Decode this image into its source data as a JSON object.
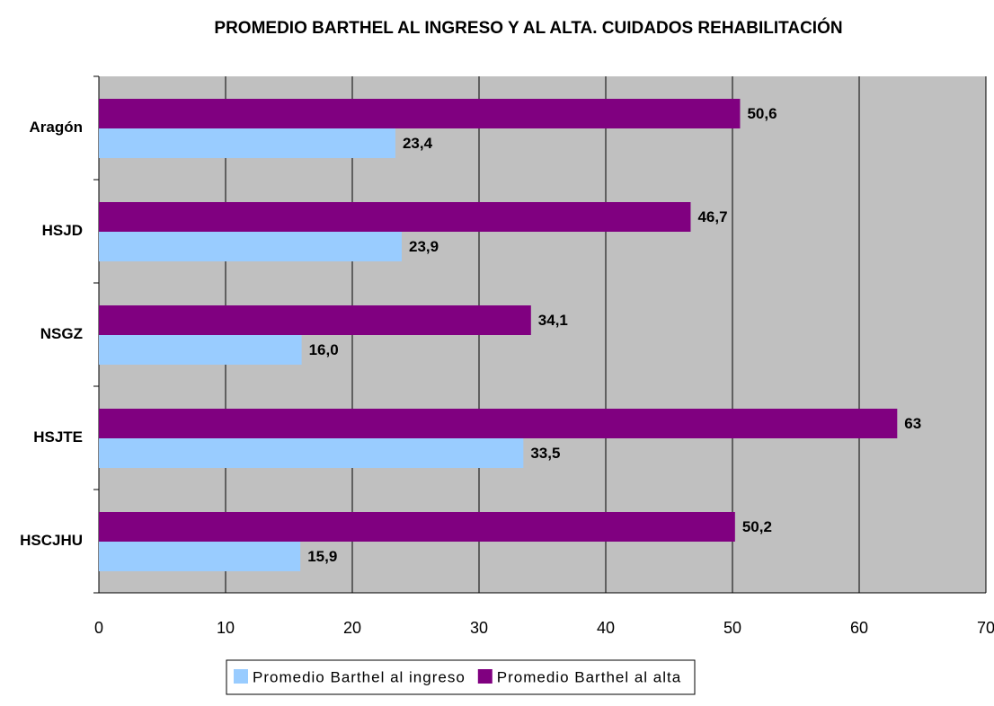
{
  "chart_data": {
    "type": "hbar",
    "title": "PROMEDIO BARTHEL AL INGRESO Y AL ALTA. CUIDADOS REHABILITACIÓN",
    "categories": [
      "Aragón",
      "HSJD",
      "NSGZ",
      "HSJTE",
      "HSCJHU"
    ],
    "series": [
      {
        "name": "Promedio Barthel al ingreso",
        "color": "#99ccff",
        "values": [
          23.4,
          23.9,
          16.0,
          33.5,
          15.9
        ],
        "value_labels": [
          "23,4",
          "23,9",
          "16,0",
          "33,5",
          "15,9"
        ]
      },
      {
        "name": "Promedio Barthel al alta",
        "color": "#800080",
        "values": [
          50.6,
          46.7,
          34.1,
          63,
          50.2
        ],
        "value_labels": [
          "50,6",
          "46,7",
          "34,1",
          "63",
          "50,2"
        ]
      }
    ],
    "xlim": [
      0,
      70
    ],
    "xticks": [
      0,
      10,
      20,
      30,
      40,
      50,
      60,
      70
    ],
    "grid": true,
    "plot_background": "#c0c0c0"
  }
}
